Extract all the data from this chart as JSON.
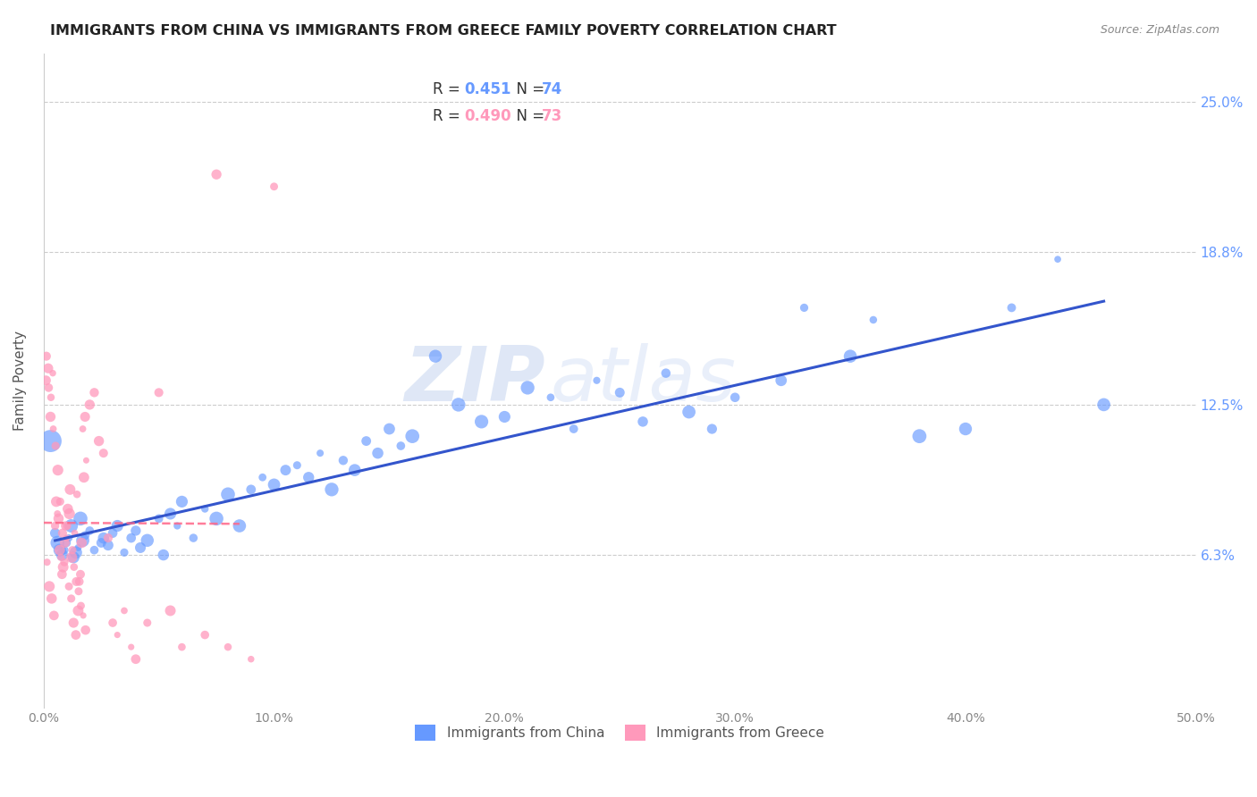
{
  "title": "IMMIGRANTS FROM CHINA VS IMMIGRANTS FROM GREECE FAMILY POVERTY CORRELATION CHART",
  "source": "Source: ZipAtlas.com",
  "ylabel": "Family Poverty",
  "ytick_labels": [
    "6.3%",
    "12.5%",
    "18.8%",
    "25.0%"
  ],
  "ytick_values": [
    6.3,
    12.5,
    18.8,
    25.0
  ],
  "xlim": [
    0.0,
    50.0
  ],
  "ylim": [
    0.0,
    27.0
  ],
  "china_R": 0.451,
  "china_N": 74,
  "greece_R": 0.49,
  "greece_N": 73,
  "china_color": "#6699ff",
  "greece_color": "#ff99bb",
  "trendline_china_color": "#3355cc",
  "trendline_greece_color": "#ff6688",
  "watermark_zip": "ZIP",
  "watermark_atlas": "atlas",
  "background_color": "#ffffff",
  "china_scatter": [
    [
      0.5,
      7.2
    ],
    [
      0.6,
      6.8
    ],
    [
      0.7,
      6.5
    ],
    [
      0.8,
      6.3
    ],
    [
      0.9,
      6.5
    ],
    [
      1.0,
      6.8
    ],
    [
      1.1,
      7.0
    ],
    [
      1.2,
      7.5
    ],
    [
      1.3,
      6.2
    ],
    [
      1.4,
      6.4
    ],
    [
      1.5,
      6.6
    ],
    [
      1.6,
      7.8
    ],
    [
      1.7,
      6.9
    ],
    [
      1.8,
      7.1
    ],
    [
      2.0,
      7.3
    ],
    [
      2.2,
      6.5
    ],
    [
      2.5,
      6.8
    ],
    [
      2.6,
      7.0
    ],
    [
      2.8,
      6.7
    ],
    [
      3.0,
      7.2
    ],
    [
      3.2,
      7.5
    ],
    [
      3.5,
      6.4
    ],
    [
      3.8,
      7.0
    ],
    [
      4.0,
      7.3
    ],
    [
      4.2,
      6.6
    ],
    [
      4.5,
      6.9
    ],
    [
      5.0,
      7.8
    ],
    [
      5.2,
      6.3
    ],
    [
      5.5,
      8.0
    ],
    [
      5.8,
      7.5
    ],
    [
      6.0,
      8.5
    ],
    [
      6.5,
      7.0
    ],
    [
      7.0,
      8.2
    ],
    [
      7.5,
      7.8
    ],
    [
      8.0,
      8.8
    ],
    [
      8.5,
      7.5
    ],
    [
      9.0,
      9.0
    ],
    [
      9.5,
      9.5
    ],
    [
      10.0,
      9.2
    ],
    [
      10.5,
      9.8
    ],
    [
      11.0,
      10.0
    ],
    [
      11.5,
      9.5
    ],
    [
      12.0,
      10.5
    ],
    [
      12.5,
      9.0
    ],
    [
      13.0,
      10.2
    ],
    [
      13.5,
      9.8
    ],
    [
      14.0,
      11.0
    ],
    [
      14.5,
      10.5
    ],
    [
      15.0,
      11.5
    ],
    [
      15.5,
      10.8
    ],
    [
      16.0,
      11.2
    ],
    [
      17.0,
      14.5
    ],
    [
      18.0,
      12.5
    ],
    [
      19.0,
      11.8
    ],
    [
      20.0,
      12.0
    ],
    [
      21.0,
      13.2
    ],
    [
      22.0,
      12.8
    ],
    [
      23.0,
      11.5
    ],
    [
      24.0,
      13.5
    ],
    [
      25.0,
      13.0
    ],
    [
      26.0,
      11.8
    ],
    [
      27.0,
      13.8
    ],
    [
      28.0,
      12.2
    ],
    [
      29.0,
      11.5
    ],
    [
      30.0,
      12.8
    ],
    [
      32.0,
      13.5
    ],
    [
      33.0,
      16.5
    ],
    [
      35.0,
      14.5
    ],
    [
      36.0,
      16.0
    ],
    [
      38.0,
      11.2
    ],
    [
      40.0,
      11.5
    ],
    [
      42.0,
      16.5
    ],
    [
      44.0,
      18.5
    ],
    [
      46.0,
      12.5
    ]
  ],
  "china_large_dot": [
    0.3,
    11.0
  ],
  "china_large_dot_size": 320,
  "greece_scatter": [
    [
      0.1,
      13.5
    ],
    [
      0.2,
      14.0
    ],
    [
      0.3,
      12.0
    ],
    [
      0.4,
      13.8
    ],
    [
      0.5,
      7.5
    ],
    [
      0.6,
      8.0
    ],
    [
      0.7,
      6.5
    ],
    [
      0.8,
      5.5
    ],
    [
      0.9,
      6.0
    ],
    [
      1.0,
      7.0
    ],
    [
      1.1,
      5.0
    ],
    [
      1.2,
      4.5
    ],
    [
      1.3,
      3.5
    ],
    [
      1.4,
      3.0
    ],
    [
      1.5,
      4.0
    ],
    [
      1.6,
      5.5
    ],
    [
      1.7,
      11.5
    ],
    [
      1.8,
      12.0
    ],
    [
      2.0,
      12.5
    ],
    [
      2.2,
      13.0
    ],
    [
      2.4,
      11.0
    ],
    [
      2.6,
      10.5
    ],
    [
      2.8,
      7.0
    ],
    [
      3.0,
      3.5
    ],
    [
      3.2,
      3.0
    ],
    [
      3.5,
      4.0
    ],
    [
      3.8,
      2.5
    ],
    [
      4.0,
      2.0
    ],
    [
      4.5,
      3.5
    ],
    [
      5.0,
      13.0
    ],
    [
      5.5,
      4.0
    ],
    [
      6.0,
      2.5
    ],
    [
      7.0,
      3.0
    ],
    [
      7.5,
      22.0
    ],
    [
      8.0,
      2.5
    ],
    [
      9.0,
      2.0
    ],
    [
      10.0,
      21.5
    ],
    [
      0.15,
      6.0
    ],
    [
      0.25,
      5.0
    ],
    [
      0.35,
      4.5
    ],
    [
      0.45,
      3.8
    ],
    [
      0.55,
      8.5
    ],
    [
      0.65,
      7.8
    ],
    [
      0.75,
      6.2
    ],
    [
      0.85,
      5.8
    ],
    [
      0.95,
      7.5
    ],
    [
      1.05,
      8.2
    ],
    [
      1.15,
      9.0
    ],
    [
      1.25,
      6.5
    ],
    [
      1.35,
      7.2
    ],
    [
      1.45,
      8.8
    ],
    [
      1.55,
      5.2
    ],
    [
      1.65,
      6.8
    ],
    [
      1.75,
      9.5
    ],
    [
      1.85,
      10.2
    ],
    [
      0.12,
      14.5
    ],
    [
      0.22,
      13.2
    ],
    [
      0.32,
      12.8
    ],
    [
      0.42,
      11.5
    ],
    [
      0.52,
      10.8
    ],
    [
      0.62,
      9.8
    ],
    [
      0.72,
      8.5
    ],
    [
      0.82,
      7.2
    ],
    [
      0.92,
      6.8
    ],
    [
      1.02,
      7.5
    ],
    [
      1.12,
      8.0
    ],
    [
      1.22,
      6.2
    ],
    [
      1.32,
      5.8
    ],
    [
      1.42,
      5.2
    ],
    [
      1.52,
      4.8
    ],
    [
      1.62,
      4.2
    ],
    [
      1.72,
      3.8
    ],
    [
      1.82,
      3.2
    ]
  ]
}
